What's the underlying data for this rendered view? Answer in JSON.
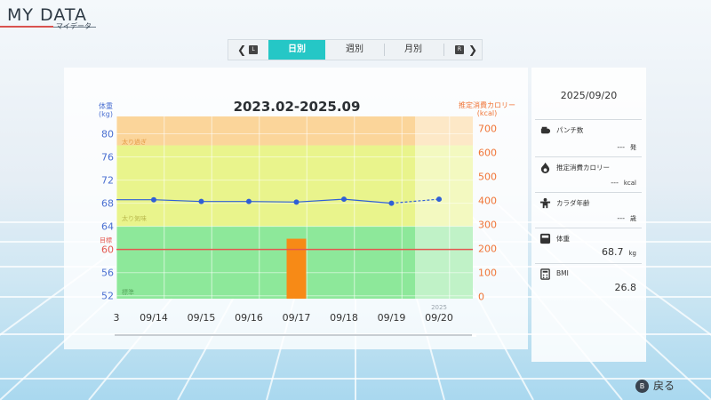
{
  "header": {
    "title": "MY DATA",
    "subtitle": "マイデータ"
  },
  "tabs": {
    "prev_key": "L",
    "next_key": "R",
    "items": [
      {
        "label": "日別",
        "active": true
      },
      {
        "label": "週別",
        "active": false
      },
      {
        "label": "月別",
        "active": false
      }
    ]
  },
  "chart_data": {
    "type": "line",
    "title": "2023.02-2025.09",
    "year_label": "2025",
    "categories": [
      "09/14",
      "09/15",
      "09/16",
      "09/17",
      "09/18",
      "09/19",
      "09/20"
    ],
    "partial_left_label": "3",
    "series": [
      {
        "name": "体重",
        "axis": "left",
        "type": "line",
        "values": [
          68.6,
          68.3,
          68.3,
          68.2,
          68.7,
          68.0,
          68.7
        ]
      },
      {
        "name": "推定消費カロリー",
        "axis": "right",
        "type": "bar",
        "values": [
          0,
          0,
          0,
          240,
          0,
          0,
          0
        ]
      }
    ],
    "y_left": {
      "label": "体重",
      "unit": "(kg)",
      "ticks": [
        52,
        56,
        60,
        64,
        68,
        72,
        76,
        80
      ],
      "range": [
        51.5,
        83
      ]
    },
    "y_right": {
      "label": "推定消費カロリー",
      "unit": "(kcal)",
      "ticks": [
        0,
        100,
        200,
        300,
        400,
        500,
        600,
        700
      ],
      "range": [
        -10,
        750
      ]
    },
    "bands": [
      {
        "label": "太り過ぎ",
        "from": 78,
        "to": 83,
        "color": "#fbd59a"
      },
      {
        "label": "太り気味",
        "from": 64,
        "to": 78,
        "color": "#e9f48c"
      },
      {
        "label": "標準",
        "from": 51.5,
        "to": 64,
        "color": "#8de89a"
      }
    ],
    "target": {
      "label": "目標",
      "value": 60,
      "color": "#e4574f"
    },
    "colors": {
      "weight": "#2f5fd6",
      "calorie": "#f78a16",
      "left_axis": "#4a6fd1",
      "right_axis": "#f07436"
    }
  },
  "side_panel": {
    "date": "2025/09/20",
    "items": [
      {
        "icon": "punch-icon",
        "label": "パンチ数",
        "value": "---",
        "unit": "発"
      },
      {
        "icon": "flame-icon",
        "label": "推定消費カロリー",
        "value": "---",
        "unit": "kcal"
      },
      {
        "icon": "body-icon",
        "label": "カラダ年齢",
        "value": "---",
        "unit": "歳"
      },
      {
        "icon": "scale-icon",
        "label": "体重",
        "value": "68.7",
        "unit": "kg"
      },
      {
        "icon": "calculator-icon",
        "label": "BMI",
        "value": "26.8",
        "unit": ""
      }
    ]
  },
  "footer": {
    "button": "B",
    "back_label": "戻る"
  }
}
